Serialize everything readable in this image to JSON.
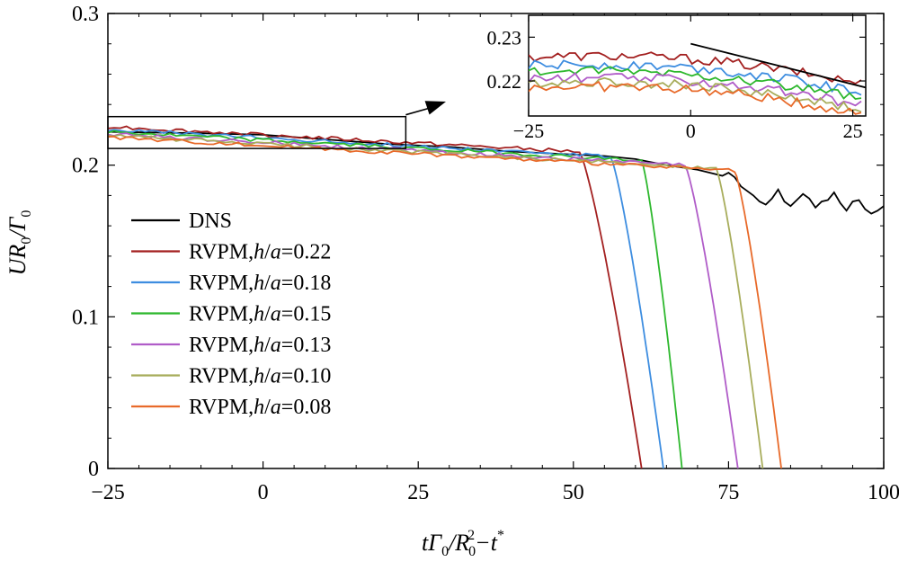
{
  "chart_data": {
    "type": "line",
    "xlabel": {
      "main": "tΓ",
      "sub0": "0",
      "slash": "/R",
      "sub1": "0",
      "sup": "2",
      "minus": "−t",
      "star": "*"
    },
    "ylabel": {
      "main": "UR",
      "sub0": "0",
      "slash": "/Γ",
      "sub1": "0"
    },
    "xlim": [
      -25,
      100
    ],
    "ylim": [
      0,
      0.3
    ],
    "xticks": [
      "−25",
      "0",
      "25",
      "50",
      "75",
      "100"
    ],
    "xtick_values": [
      -25,
      0,
      25,
      50,
      75,
      100
    ],
    "yticks": [
      "0",
      "0.1",
      "0.2",
      "0.3"
    ],
    "ytick_values": [
      0,
      0.1,
      0.2,
      0.3
    ],
    "legend_position": "left",
    "series": [
      {
        "name": "DNS",
        "prefix": "DNS",
        "h": "",
        "a": "",
        "value": "",
        "color": "#000000",
        "points": [
          [
            -25,
            0.222
          ],
          [
            -10,
            0.221
          ],
          [
            0,
            0.22
          ],
          [
            10,
            0.217
          ],
          [
            20,
            0.214
          ],
          [
            30,
            0.212
          ],
          [
            40,
            0.209
          ],
          [
            50,
            0.207
          ],
          [
            55,
            0.206
          ],
          [
            60,
            0.204
          ],
          [
            65,
            0.2
          ],
          [
            70,
            0.197
          ],
          [
            72,
            0.195
          ],
          [
            74,
            0.193
          ],
          [
            75,
            0.195
          ],
          [
            76,
            0.192
          ],
          [
            77,
            0.186
          ],
          [
            79,
            0.18
          ],
          [
            80,
            0.176
          ],
          [
            81,
            0.174
          ],
          [
            82,
            0.178
          ],
          [
            83,
            0.184
          ],
          [
            84,
            0.176
          ],
          [
            85,
            0.173
          ],
          [
            86,
            0.177
          ],
          [
            87,
            0.181
          ],
          [
            88,
            0.178
          ],
          [
            89,
            0.172
          ],
          [
            90,
            0.176
          ],
          [
            91,
            0.177
          ],
          [
            92,
            0.182
          ],
          [
            93,
            0.175
          ],
          [
            94,
            0.17
          ],
          [
            95,
            0.176
          ],
          [
            96,
            0.177
          ],
          [
            97,
            0.171
          ],
          [
            98,
            0.168
          ],
          [
            99,
            0.17
          ],
          [
            100,
            0.173
          ]
        ]
      },
      {
        "name": "RVPM,h/a=0.22",
        "prefix": "RVPM,",
        "h": "h",
        "a": "a",
        "value": "=0.22",
        "color": "#a32020",
        "base": 0.2255,
        "drop_start": 51,
        "drop_end": 61,
        "bottom_x": 61
      },
      {
        "name": "RVPM,h/a=0.18",
        "prefix": "RVPM,",
        "h": "h",
        "a": "a",
        "value": "=0.18",
        "color": "#3d8de0",
        "base": 0.2235,
        "drop_start": 56,
        "drop_end": 64.5,
        "bottom_x": 64.5
      },
      {
        "name": "RVPM,h/a=0.15",
        "prefix": "RVPM,",
        "h": "h",
        "a": "a",
        "value": "=0.15",
        "color": "#2eb82e",
        "base": 0.222,
        "drop_start": 61,
        "drop_end": 67.5,
        "bottom_x": 67.5
      },
      {
        "name": "RVPM,h/a=0.13",
        "prefix": "RVPM,",
        "h": "h",
        "a": "a",
        "value": "=0.13",
        "color": "#b05cc8",
        "base": 0.2205,
        "drop_start": 68,
        "drop_end": 76.5,
        "bottom_x": 76.5
      },
      {
        "name": "RVPM,h/a=0.10",
        "prefix": "RVPM,",
        "h": "h",
        "a": "a",
        "value": "=0.10",
        "color": "#a8ad5c",
        "base": 0.2195,
        "drop_start": 73,
        "drop_end": 80.5,
        "bottom_x": 80.5
      },
      {
        "name": "RVPM,h/a=0.08",
        "prefix": "RVPM,",
        "h": "h",
        "a": "a",
        "value": "=0.08",
        "color": "#e86a2a",
        "base": 0.2185,
        "drop_start": 76,
        "drop_end": 83.5,
        "bottom_x": 83.5
      }
    ],
    "zoom_box": {
      "xrange": [
        -25,
        23
      ],
      "yrange": [
        0.211,
        0.232
      ]
    },
    "inset": {
      "xlim": [
        -25,
        27
      ],
      "ylim": [
        0.212,
        0.235
      ],
      "xticks": [
        "−25",
        "0",
        "25"
      ],
      "xtick_values": [
        -25,
        0,
        25
      ],
      "yticks": [
        "0.22",
        "0.23"
      ],
      "ytick_values": [
        0.22,
        0.23
      ],
      "dns_line": [
        [
          0,
          0.2285
        ],
        [
          27,
          0.2185
        ]
      ]
    }
  }
}
